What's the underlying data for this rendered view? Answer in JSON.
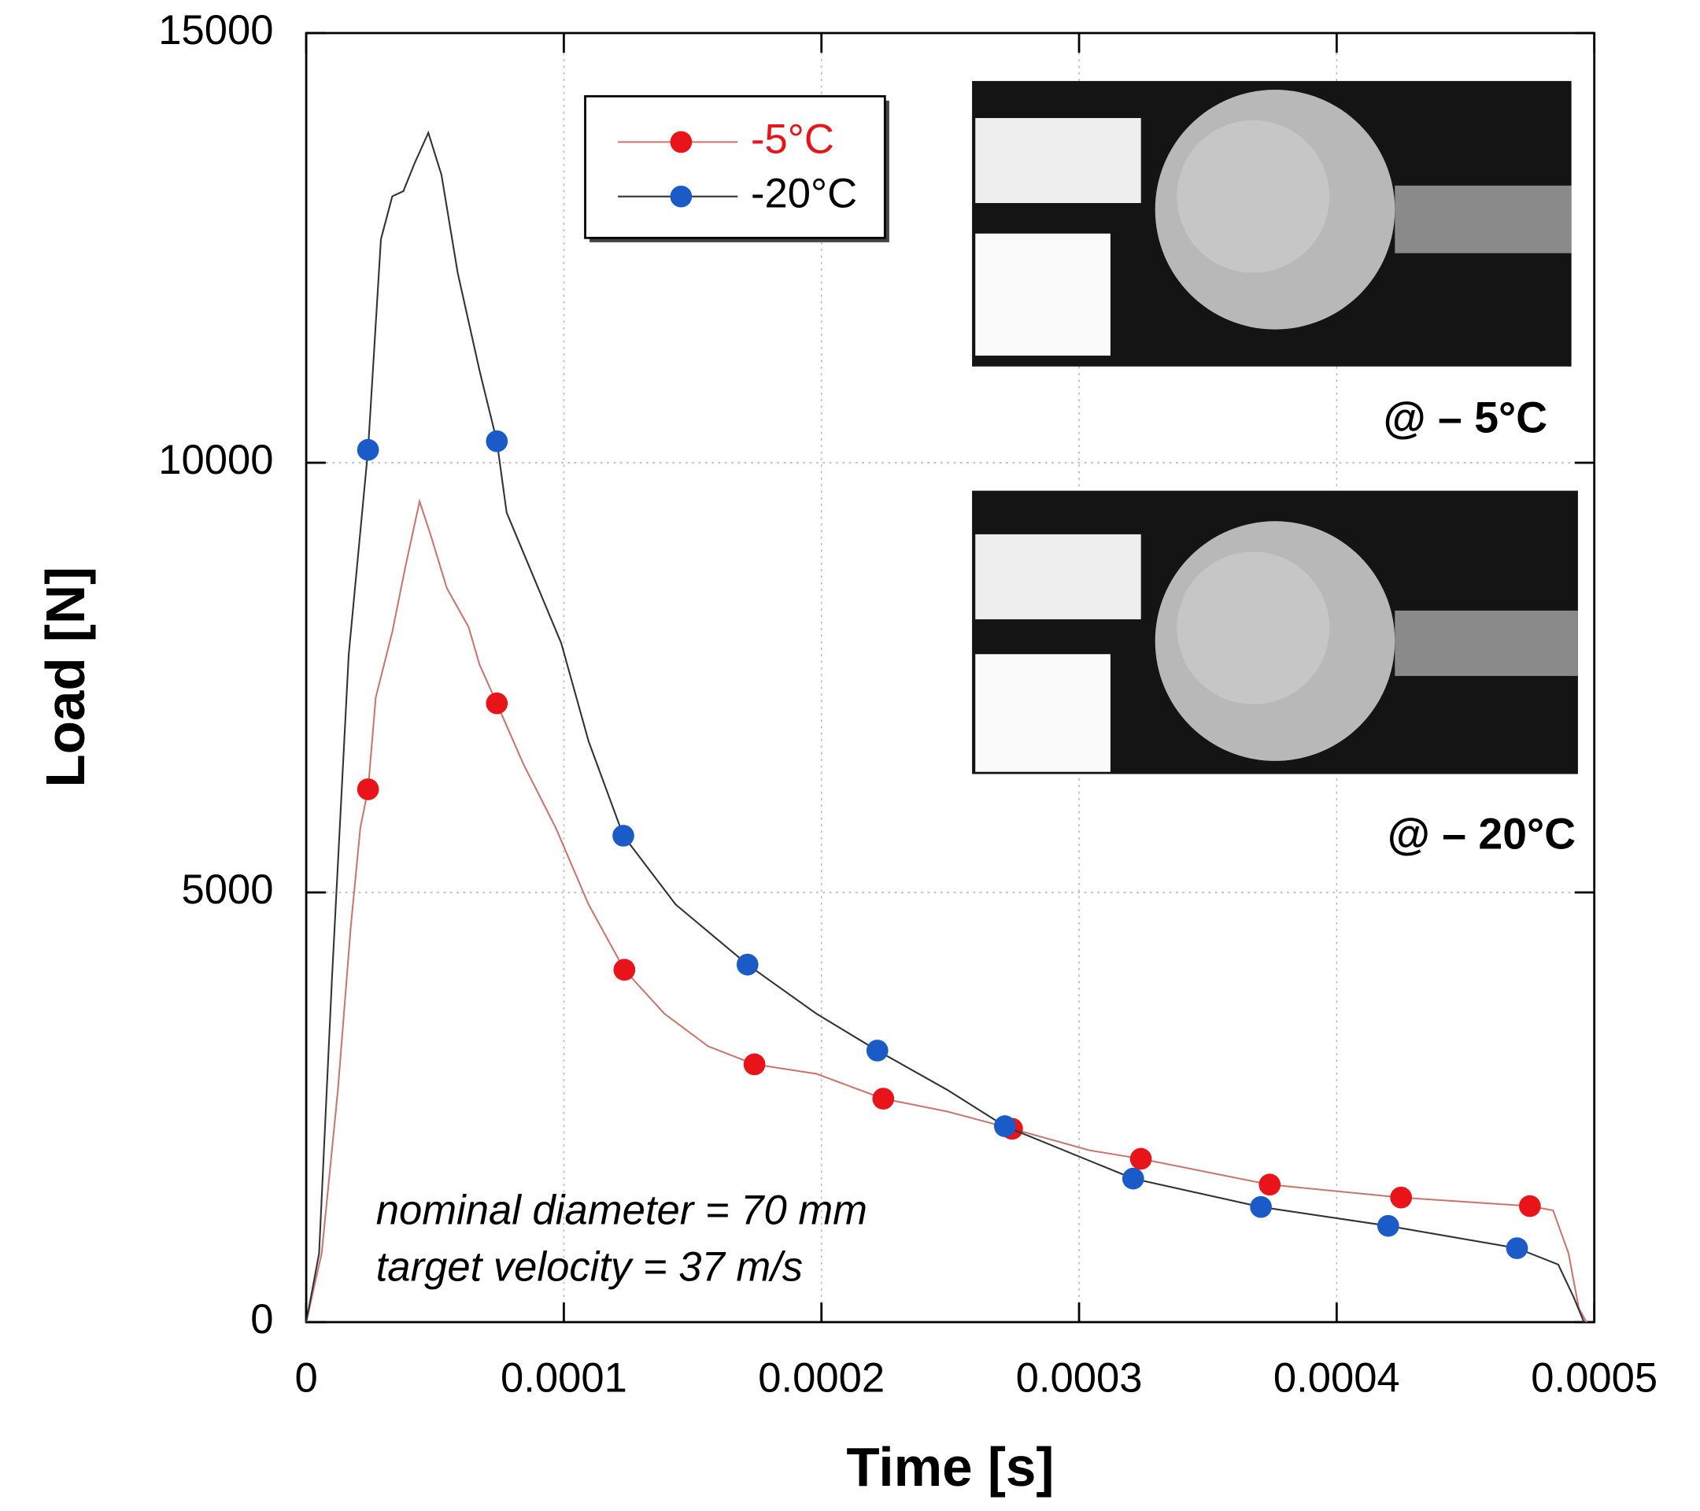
{
  "chart_data": {
    "type": "line",
    "x_label": "Time [s]",
    "y_label": "Load [N]",
    "xlim": [
      0,
      0.0005
    ],
    "ylim": [
      0,
      15000
    ],
    "xticks": [
      0,
      0.0001,
      0.0002,
      0.0003,
      0.0004,
      0.0005
    ],
    "yticks": [
      0,
      5000,
      10000,
      15000
    ],
    "grid": true,
    "legend": "upper center",
    "annotations": [
      "nominal diameter = 70 mm",
      "target velocity = 37 m/s"
    ],
    "image_labels": [
      "@ – 5°C",
      "@ – 20°C"
    ],
    "series": [
      {
        "name": "-5°C",
        "color": "#e8141a",
        "line_color": "#c8786e",
        "x": [
          0,
          6e-06,
          1.23e-05,
          1.73e-05,
          2.1e-05,
          2.4e-05,
          2.7e-05,
          3.34e-05,
          3.85e-05,
          4.4e-05,
          4.82e-05,
          5.46e-05,
          6.3e-05,
          6.73e-05,
          7.4e-05,
          8.42e-05,
          9.69e-05,
          0.0001096,
          0.0001235,
          0.000139,
          0.000156,
          0.000174,
          0.000198,
          0.000224,
          0.000249,
          0.000274,
          0.000304,
          0.000324,
          0.000374,
          0.000425,
          0.000475,
          0.000484,
          0.00049,
          0.000494,
          0.000497
        ],
        "values": [
          0,
          800,
          2700,
          4600,
          5750,
          6200,
          7270,
          8030,
          8790,
          9550,
          9170,
          8540,
          8090,
          7650,
          7200,
          6500,
          5750,
          4860,
          4100,
          3590,
          3210,
          3000,
          2890,
          2600,
          2450,
          2250,
          2000,
          1900,
          1600,
          1450,
          1350,
          1300,
          800,
          160,
          0
        ],
        "marker_x": [
          2.4e-05,
          7.4e-05,
          0.0001235,
          0.000174,
          0.000224,
          0.000274,
          0.000324,
          0.000374,
          0.000425,
          0.000475
        ],
        "marker_values": [
          6200,
          7200,
          4100,
          3000,
          2600,
          2250,
          1900,
          1600,
          1450,
          1350
        ]
      },
      {
        "name": "-20°C",
        "color": "#1a5bc8",
        "line_color": "#333333",
        "x": [
          0,
          5e-06,
          1e-05,
          1.65e-05,
          2.4e-05,
          2.9e-05,
          3.34e-05,
          3.77e-05,
          4.2e-05,
          4.74e-05,
          5.25e-05,
          5.88e-05,
          6.73e-05,
          7.4e-05,
          7.78e-05,
          8.84e-05,
          9.9e-05,
          0.0001096,
          0.0001231,
          0.0001434,
          0.0001713,
          0.000198,
          0.0002217,
          0.000249,
          0.0002712,
          0.000321,
          0.0003706,
          0.00042,
          0.00047,
          0.000486,
          0.000492,
          0.000496
        ],
        "values": [
          0,
          800,
          4000,
          7770,
          10150,
          12600,
          13100,
          13160,
          13480,
          13840,
          13350,
          12210,
          11070,
          10250,
          9420,
          8660,
          7900,
          6760,
          5660,
          4860,
          4160,
          3590,
          3160,
          2700,
          2280,
          1670,
          1340,
          1120,
          860,
          670,
          290,
          0
        ],
        "marker_x": [
          2.4e-05,
          7.4e-05,
          0.0001231,
          0.0001713,
          0.0002217,
          0.0002712,
          0.000321,
          0.0003706,
          0.00042,
          0.00047
        ],
        "marker_values": [
          10150,
          10250,
          5660,
          4160,
          3160,
          2280,
          1670,
          1340,
          1120,
          860
        ]
      }
    ]
  }
}
